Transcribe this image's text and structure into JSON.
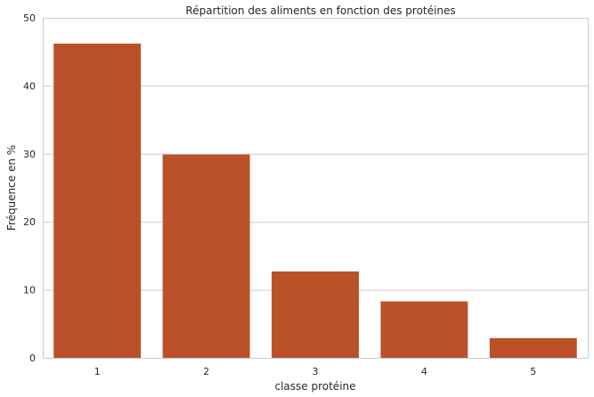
{
  "chart_data": {
    "type": "bar",
    "title": "Répartition des aliments en fonction des protéines",
    "xlabel": "classe protéine",
    "ylabel": "Fréquence en %",
    "categories": [
      "1",
      "2",
      "3",
      "4",
      "5"
    ],
    "values": [
      46.2,
      29.9,
      12.7,
      8.3,
      2.9
    ],
    "ylim": [
      0,
      50
    ],
    "yticks": [
      "0",
      "10",
      "20",
      "30",
      "40",
      "50"
    ],
    "grid": "horizontal",
    "legend": "none",
    "bar_color": "#BA5129",
    "grid_color": "#CCCCCC",
    "background_color": "#FFFFFF"
  }
}
